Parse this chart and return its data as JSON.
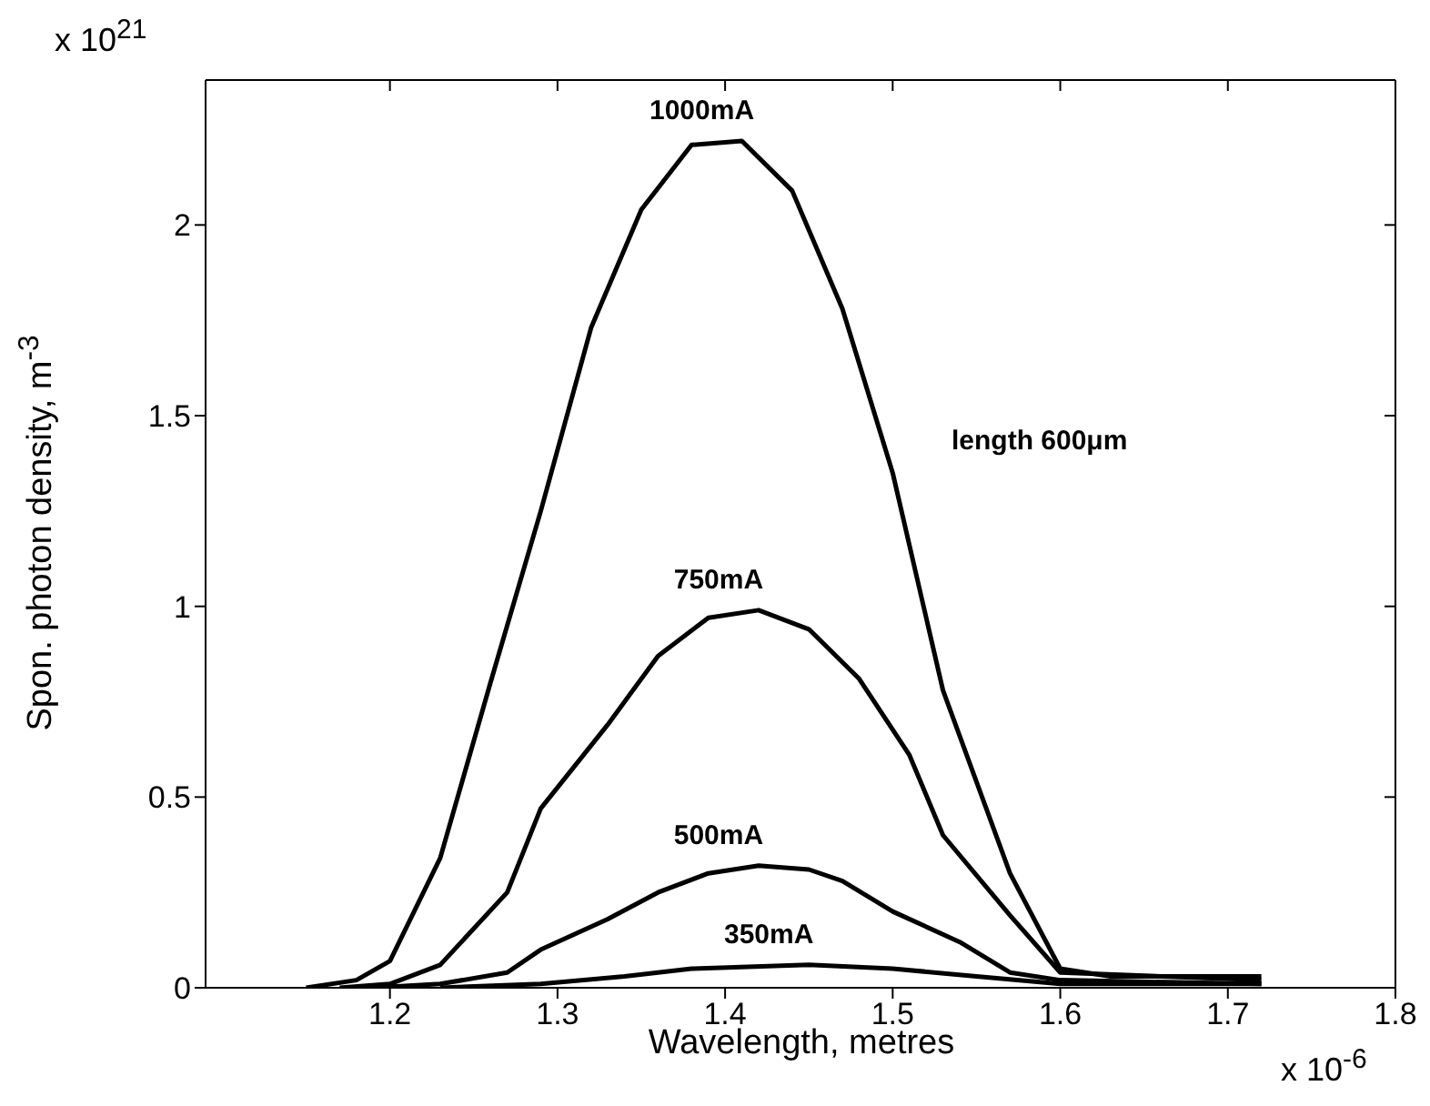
{
  "chart_data": {
    "type": "line",
    "xlabel": "Wavelength, metres",
    "ylabel": "Spon. photon density, m$^{-3}$",
    "xlim": [
      1.09,
      1.8
    ],
    "xticks": [
      1.2,
      1.3,
      1.4,
      1.5,
      1.6,
      1.7,
      1.8
    ],
    "ylim": [
      0,
      2.38
    ],
    "yticks": [
      0,
      0.5,
      1,
      1.5,
      2
    ],
    "marker": "none",
    "line_style": "solid",
    "annotations": [
      "length 600μm",
      "x 10$^{21}$",
      "x 10$^{-6}$"
    ],
    "series": [
      {
        "name": "1000mA",
        "color": "#000000",
        "x": [
          1.15,
          1.18,
          1.2,
          1.23,
          1.26,
          1.29,
          1.32,
          1.35,
          1.38,
          1.41,
          1.44,
          1.47,
          1.5,
          1.53,
          1.57,
          1.6,
          1.63,
          1.72
        ],
        "values": [
          0,
          0.02,
          0.07,
          0.34,
          0.8,
          1.25,
          1.73,
          2.04,
          2.21,
          2.22,
          2.09,
          1.78,
          1.35,
          0.78,
          0.3,
          0.05,
          0.03,
          0.03
        ]
      },
      {
        "name": "750mA",
        "color": "#000000",
        "x": [
          1.17,
          1.2,
          1.23,
          1.27,
          1.29,
          1.33,
          1.36,
          1.39,
          1.42,
          1.45,
          1.48,
          1.51,
          1.53,
          1.57,
          1.6,
          1.72
        ],
        "values": [
          0,
          0.01,
          0.06,
          0.25,
          0.47,
          0.69,
          0.87,
          0.97,
          0.99,
          0.94,
          0.81,
          0.61,
          0.4,
          0.19,
          0.04,
          0.02
        ]
      },
      {
        "name": "500mA",
        "color": "#000000",
        "x": [
          1.19,
          1.23,
          1.27,
          1.29,
          1.33,
          1.36,
          1.39,
          1.42,
          1.45,
          1.47,
          1.5,
          1.54,
          1.57,
          1.6,
          1.72
        ],
        "values": [
          0,
          0.01,
          0.04,
          0.1,
          0.18,
          0.25,
          0.3,
          0.32,
          0.31,
          0.28,
          0.2,
          0.12,
          0.04,
          0.02,
          0.01
        ]
      },
      {
        "name": "350mA",
        "color": "#000000",
        "x": [
          1.23,
          1.29,
          1.34,
          1.38,
          1.45,
          1.5,
          1.55,
          1.6,
          1.72
        ],
        "values": [
          0,
          0.01,
          0.03,
          0.05,
          0.06,
          0.05,
          0.03,
          0.01,
          0.01
        ]
      }
    ]
  }
}
